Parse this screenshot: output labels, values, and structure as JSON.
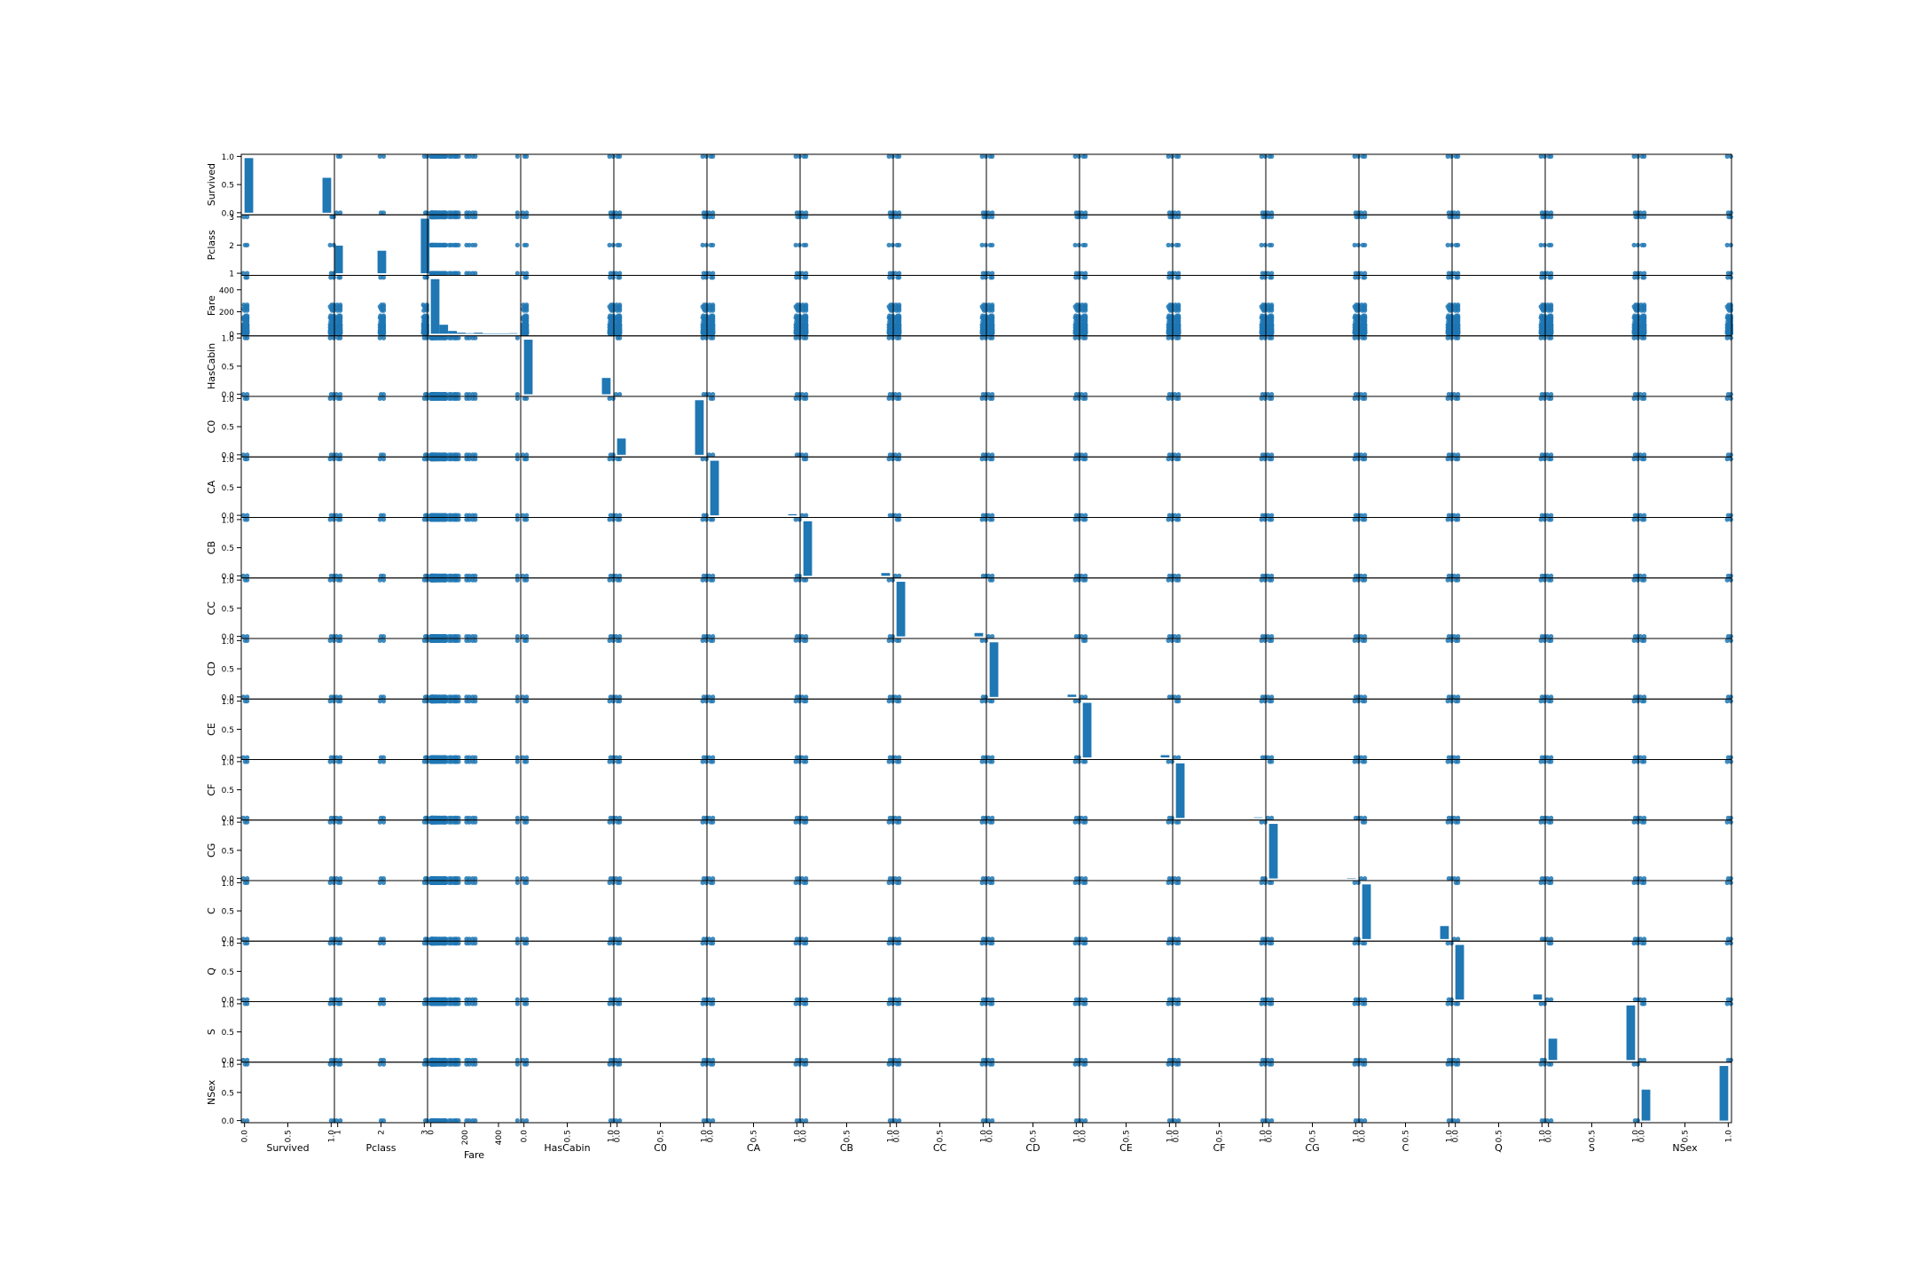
{
  "chart_data": {
    "type": "scatter",
    "title": "",
    "variables": [
      "Survived",
      "Pclass",
      "Fare",
      "HasCabin",
      "C0",
      "CA",
      "CB",
      "CC",
      "CD",
      "CE",
      "CF",
      "CG",
      "C",
      "Q",
      "S",
      "NSex"
    ],
    "axis_ticks": {
      "Survived": [
        "0.0",
        "0.5",
        "1.0"
      ],
      "Pclass": [
        "1",
        "2",
        "3"
      ],
      "Fare": [
        "0",
        "200",
        "400"
      ],
      "HasCabin": [
        "0.0",
        "0.5",
        "1.0"
      ],
      "C0": [
        "0.0",
        "0.5",
        "1.0"
      ],
      "CA": [
        "0.0",
        "0.5",
        "1.0"
      ],
      "CB": [
        "0.0",
        "0.5",
        "1.0"
      ],
      "CC": [
        "0.0",
        "0.5",
        "1.0"
      ],
      "CD": [
        "0.0",
        "0.5",
        "1.0"
      ],
      "CE": [
        "0.0",
        "0.5",
        "1.0"
      ],
      "CF": [
        "0.0",
        "0.5",
        "1.0"
      ],
      "CG": [
        "0.0",
        "0.5",
        "1.0"
      ],
      "C": [
        "0.0",
        "0.5",
        "1.0"
      ],
      "Q": [
        "0.0",
        "0.5",
        "1.0"
      ],
      "S": [
        "0.0",
        "0.5",
        "1.0"
      ],
      "NSex": [
        "0.0",
        "0.5",
        "1.0"
      ]
    },
    "ranges": {
      "Survived": [
        0,
        1
      ],
      "Pclass": [
        1,
        3
      ],
      "Fare": [
        0,
        512
      ],
      "HasCabin": [
        0,
        1
      ],
      "C0": [
        0,
        1
      ],
      "CA": [
        0,
        1
      ],
      "CB": [
        0,
        1
      ],
      "CC": [
        0,
        1
      ],
      "CD": [
        0,
        1
      ],
      "CE": [
        0,
        1
      ],
      "CF": [
        0,
        1
      ],
      "CG": [
        0,
        1
      ],
      "C": [
        0,
        1
      ],
      "Q": [
        0,
        1
      ],
      "S": [
        0,
        1
      ],
      "NSex": [
        0,
        1
      ]
    },
    "diagonal": "histogram",
    "histograms": {
      "Survived": {
        "bins": [
          0.0,
          1.0
        ],
        "heights": [
          0.97,
          0.62
        ]
      },
      "Pclass": {
        "bins": [
          1,
          2,
          3
        ],
        "heights": [
          0.49,
          0.4,
          0.97
        ]
      },
      "Fare": {
        "bins": [
          0,
          51,
          102,
          154,
          205,
          256,
          307,
          358,
          410,
          461,
          512
        ],
        "heights": [
          0.97,
          0.16,
          0.05,
          0.02,
          0.01,
          0.02,
          0.0,
          0.0,
          0.0,
          0.01
        ]
      },
      "HasCabin": {
        "bins": [
          0.0,
          1.0
        ],
        "heights": [
          0.97,
          0.29
        ]
      },
      "C0": {
        "bins": [
          0.0,
          1.0
        ],
        "heights": [
          0.29,
          0.97
        ]
      },
      "CA": {
        "bins": [
          0.0,
          1.0
        ],
        "heights": [
          0.97,
          0.02
        ]
      },
      "CB": {
        "bins": [
          0.0,
          1.0
        ],
        "heights": [
          0.97,
          0.05
        ]
      },
      "CC": {
        "bins": [
          0.0,
          1.0
        ],
        "heights": [
          0.97,
          0.06
        ]
      },
      "CD": {
        "bins": [
          0.0,
          1.0
        ],
        "heights": [
          0.97,
          0.04
        ]
      },
      "CE": {
        "bins": [
          0.0,
          1.0
        ],
        "heights": [
          0.97,
          0.04
        ]
      },
      "CF": {
        "bins": [
          0.0,
          1.0
        ],
        "heights": [
          0.97,
          0.01
        ]
      },
      "CG": {
        "bins": [
          0.0,
          1.0
        ],
        "heights": [
          0.97,
          0.005
        ]
      },
      "C": {
        "bins": [
          0.0,
          1.0
        ],
        "heights": [
          0.97,
          0.23
        ]
      },
      "Q": {
        "bins": [
          0.0,
          1.0
        ],
        "heights": [
          0.97,
          0.09
        ]
      },
      "S": {
        "bins": [
          0.0,
          1.0
        ],
        "heights": [
          0.38,
          0.97
        ]
      },
      "NSex": {
        "bins": [
          0.0,
          1.0
        ],
        "heights": [
          0.55,
          0.97
        ]
      }
    },
    "fare_values": [
      0,
      5,
      7,
      8,
      8,
      10,
      13,
      15,
      20,
      26,
      27,
      30,
      35,
      40,
      47,
      52,
      57,
      65,
      71,
      77,
      79,
      83,
      90,
      110,
      120,
      135,
      146,
      151,
      164,
      211,
      227,
      247,
      263,
      512
    ],
    "colors": {
      "marker": "#1f77b4",
      "axes": "#000000"
    }
  }
}
